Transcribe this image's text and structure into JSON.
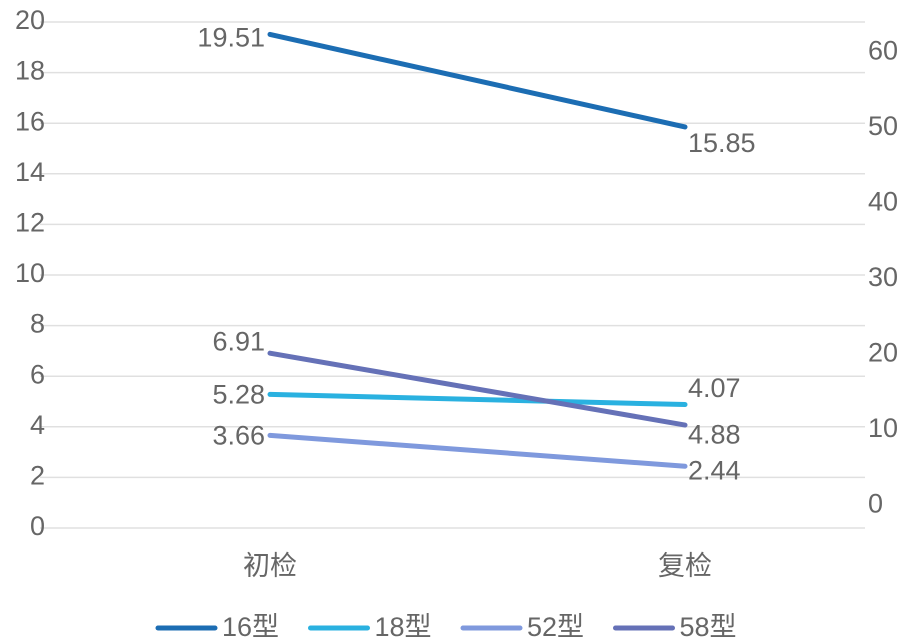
{
  "chart_data": {
    "type": "line",
    "categories": [
      "初检",
      "复检"
    ],
    "series": [
      {
        "name": "16型",
        "color": "#1c6db3",
        "values": [
          19.51,
          15.85
        ]
      },
      {
        "name": "18型",
        "color": "#2ab1e0",
        "values": [
          5.28,
          4.88
        ]
      },
      {
        "name": "52型",
        "color": "#7f99dd",
        "values": [
          3.66,
          2.44
        ]
      },
      {
        "name": "58型",
        "color": "#6571b7",
        "values": [
          6.91,
          4.07
        ]
      }
    ],
    "ylim": [
      0,
      20
    ],
    "yticks": [
      0,
      2,
      4,
      6,
      8,
      10,
      12,
      14,
      16,
      18,
      20
    ],
    "y2lim": [
      -3,
      64
    ],
    "y2ticks": [
      0,
      10,
      20,
      30,
      40,
      50,
      60
    ],
    "grid": true,
    "legend": "bottom"
  }
}
